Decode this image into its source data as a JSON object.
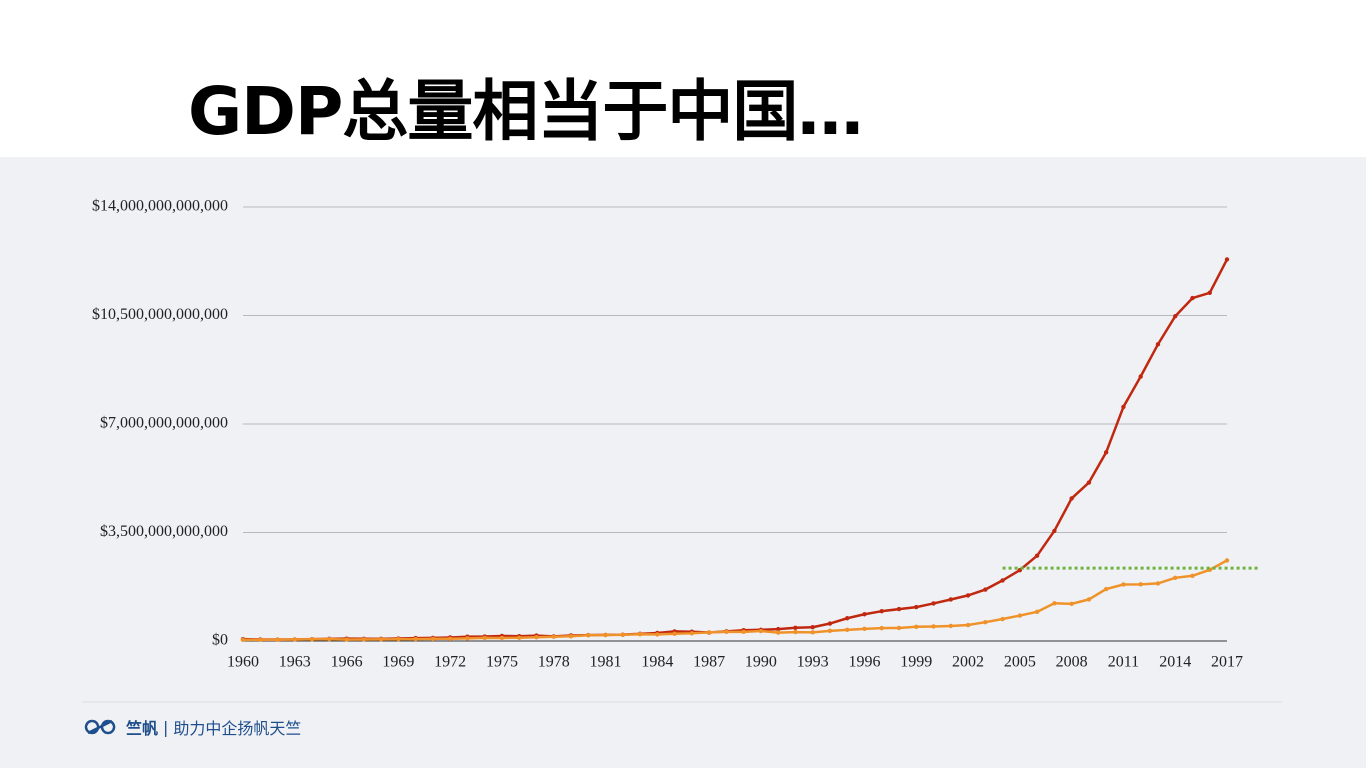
{
  "title": "GDP总量相当于中国…",
  "footer": {
    "brand": "竺帆",
    "slogan": "助力中企扬帆天竺"
  },
  "chart_data": {
    "type": "line",
    "x": [
      1960,
      1961,
      1962,
      1963,
      1964,
      1965,
      1966,
      1967,
      1968,
      1969,
      1970,
      1971,
      1972,
      1973,
      1974,
      1975,
      1976,
      1977,
      1978,
      1979,
      1980,
      1981,
      1982,
      1983,
      1984,
      1985,
      1986,
      1987,
      1988,
      1989,
      1990,
      1991,
      1992,
      1993,
      1994,
      1995,
      1996,
      1997,
      1998,
      1999,
      2000,
      2001,
      2002,
      2003,
      2004,
      2005,
      2006,
      2007,
      2008,
      2009,
      2010,
      2011,
      2012,
      2013,
      2014,
      2015,
      2016,
      2017
    ],
    "series": [
      {
        "color": "#c0280f",
        "values": [
          60000000000.0,
          50000000000.0,
          47000000000.0,
          50000000000.0,
          59000000000.0,
          70000000000.0,
          76000000000.0,
          72000000000.0,
          70000000000.0,
          79000000000.0,
          93000000000.0,
          100000000000.0,
          114000000000.0,
          139000000000.0,
          144000000000.0,
          163000000000.0,
          154000000000.0,
          175000000000.0,
          150000000000.0,
          178000000000.0,
          191000000000.0,
          196000000000.0,
          205000000000.0,
          231000000000.0,
          260000000000.0,
          310000000000.0,
          300000000000.0,
          273000000000.0,
          312000000000.0,
          348000000000.0,
          361000000000.0,
          383000000000.0,
          427000000000.0,
          445000000000.0,
          564000000000.0,
          734000000000.0,
          863000000000.0,
          962000000000.0,
          1029000000000.0,
          1094000000000.0,
          1211000000000.0,
          1339000000000.0,
          1471000000000.0,
          1660000000000.0,
          1955000000000.0,
          2286000000000.0,
          2752000000000.0,
          3552000000000.0,
          4598000000000.0,
          5110000000000.0,
          6087000000000.0,
          7552000000000.0,
          8532000000000.0,
          9570000000000.0,
          10476000000000.0,
          11062000000000.0,
          11233000000000.0,
          12310000000000.0
        ]
      },
      {
        "color": "#f0922a",
        "values": [
          37000000000.0,
          39000000000.0,
          42000000000.0,
          49000000000.0,
          56000000000.0,
          59000000000.0,
          46000000000.0,
          50000000000.0,
          53000000000.0,
          58000000000.0,
          62000000000.0,
          67000000000.0,
          71000000000.0,
          85000000000.0,
          99000000000.0,
          98000000000.0,
          103000000000.0,
          121000000000.0,
          137000000000.0,
          153000000000.0,
          186000000000.0,
          193000000000.0,
          200000000000.0,
          218000000000.0,
          212000000000.0,
          232000000000.0,
          248000000000.0,
          279000000000.0,
          296000000000.0,
          296000000000.0,
          321000000000.0,
          270000000000.0,
          288000000000.0,
          279000000000.0,
          327000000000.0,
          360000000000.0,
          392000000000.0,
          415000000000.0,
          421000000000.0,
          458000000000.0,
          468000000000.0,
          485000000000.0,
          515000000000.0,
          607000000000.0,
          709000000000.0,
          820000000000.0,
          940000000000.0,
          1217000000000.0,
          1199000000000.0,
          1342000000000.0,
          1676000000000.0,
          1823000000000.0,
          1828000000000.0,
          1857000000000.0,
          2039000000000.0,
          2104000000000.0,
          2295000000000.0,
          2600000000000.0
        ]
      }
    ],
    "reference_line": {
      "y": 2350000000000.0,
      "x_from": 2004,
      "x_to": 2018.8,
      "color": "#6db33f"
    },
    "xlim": [
      1960,
      2017
    ],
    "xticks": [
      1960,
      1963,
      1966,
      1969,
      1972,
      1975,
      1978,
      1981,
      1984,
      1987,
      1990,
      1993,
      1996,
      1999,
      2002,
      2005,
      2008,
      2011,
      2014,
      2017
    ],
    "ylim": [
      0,
      14000000000000.0
    ],
    "yticks": [
      {
        "value": 0,
        "label": "$0"
      },
      {
        "value": 3500000000000.0,
        "label": "$3,500,000,000,000"
      },
      {
        "value": 7000000000000.0,
        "label": "$7,000,000,000,000"
      },
      {
        "value": 10500000000000.0,
        "label": "$10,500,000,000,000"
      },
      {
        "value": 14000000000000.0,
        "label": "$14,000,000,000,000"
      }
    ],
    "grid": true
  }
}
